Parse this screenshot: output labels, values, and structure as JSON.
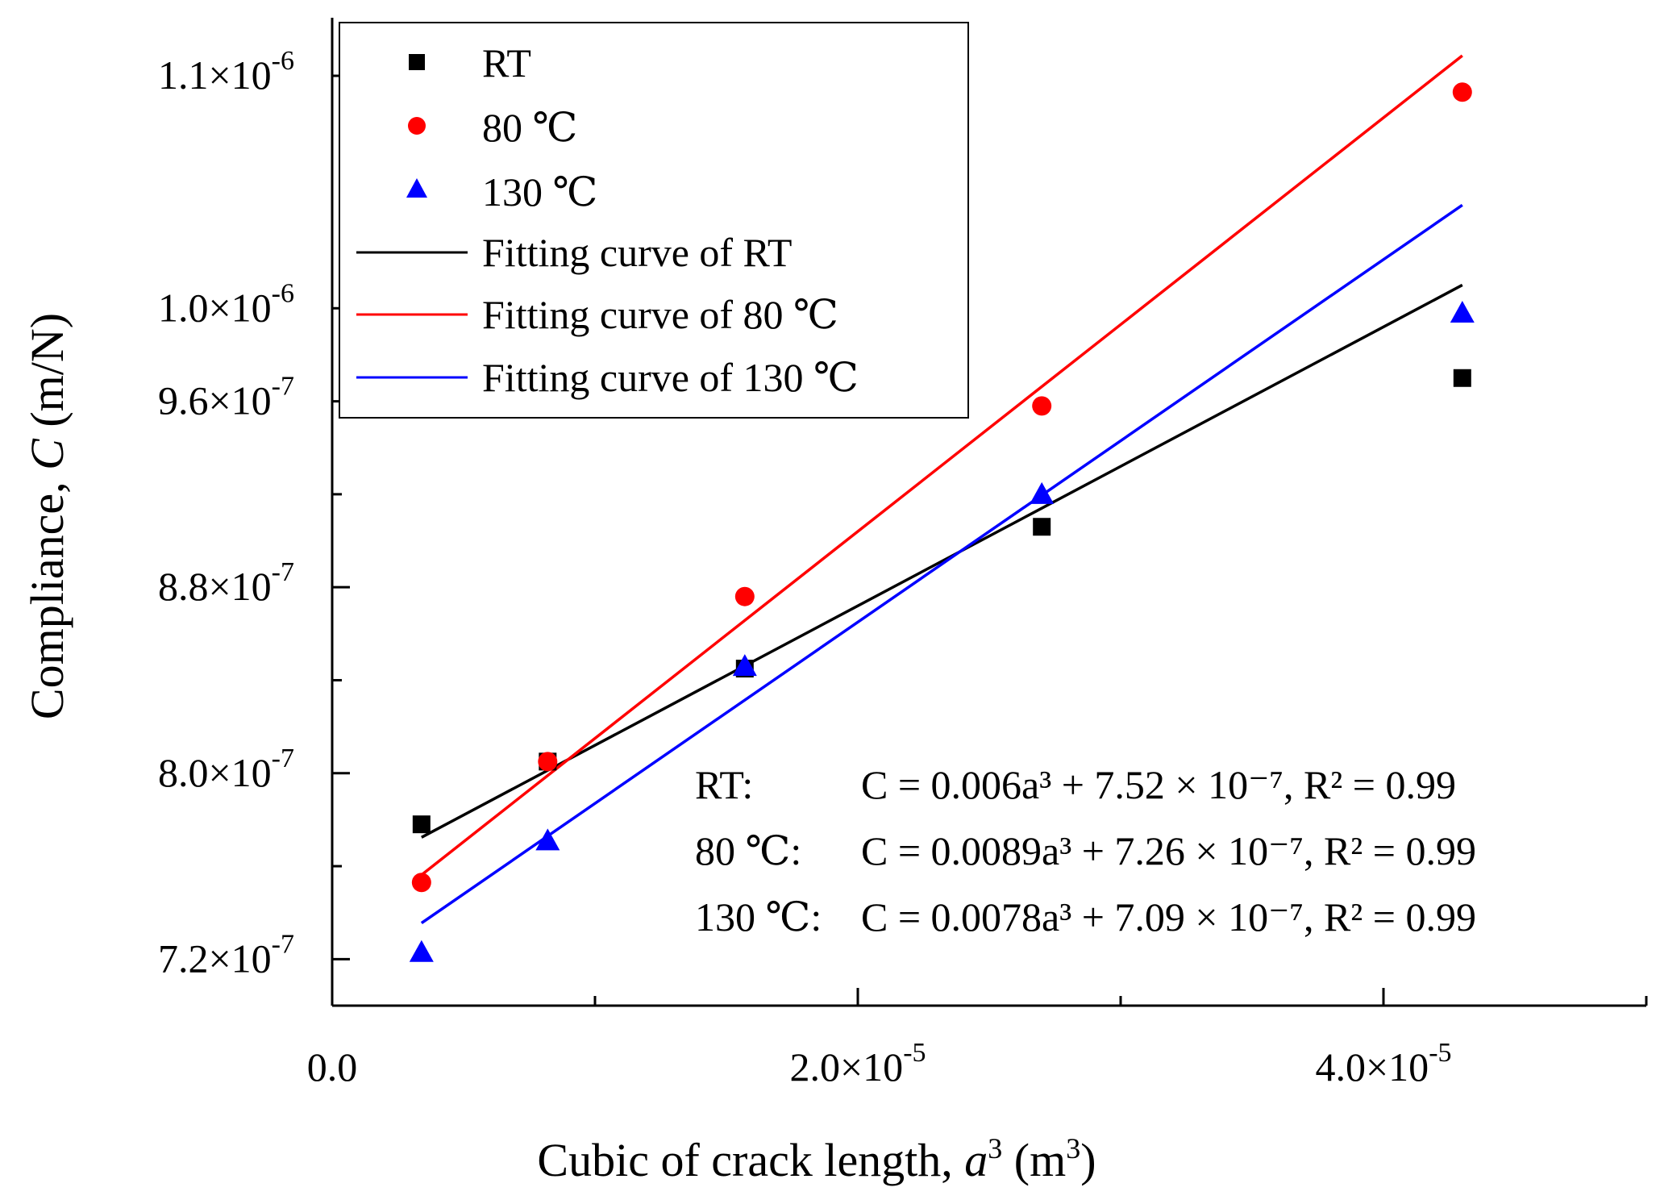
{
  "chart_data": {
    "type": "scatter",
    "title": "",
    "xlabel": {
      "prefix": "Cubic of crack length, ",
      "var": "a",
      "sup": "3",
      "unit_open": " (m",
      "unit_sup": "3",
      "unit_close": ")"
    },
    "ylabel": {
      "prefix": "Compliance, ",
      "var": "C",
      "unit": " (m/N)"
    },
    "xlim": [
      0,
      5e-05
    ],
    "ylim": [
      7e-07,
      1.125e-06
    ],
    "x_ticks": [
      {
        "value": 0,
        "mant": "0.0",
        "exp": ""
      },
      {
        "value": 2e-05,
        "mant": "2.0×10",
        "exp": "-5"
      },
      {
        "value": 4e-05,
        "mant": "4.0×10",
        "exp": "-5"
      }
    ],
    "x_minor_ticks": [
      1e-05,
      3e-05,
      5e-05
    ],
    "y_ticks": [
      {
        "value": 7.2e-07,
        "mant": "7.2×10",
        "exp": "-7"
      },
      {
        "value": 8e-07,
        "mant": "8.0×10",
        "exp": "-7"
      },
      {
        "value": 8.8e-07,
        "mant": "8.8×10",
        "exp": "-7"
      },
      {
        "value": 9.6e-07,
        "mant": "9.6×10",
        "exp": "-7"
      },
      {
        "value": 1e-06,
        "mant": "1.0×10",
        "exp": "-6"
      },
      {
        "value": 1.1e-06,
        "mant": "1.1×10",
        "exp": "-6"
      }
    ],
    "y_minor_ticks": [
      7.6e-07,
      8.4e-07,
      9.2e-07
    ],
    "series": [
      {
        "name": "RT",
        "marker": "square",
        "color": "#000000",
        "x": [
          3.4e-06,
          8.2e-06,
          1.57e-05,
          2.7e-05,
          4.3e-05
        ],
        "y": [
          7.78e-07,
          8.05e-07,
          8.45e-07,
          9.06e-07,
          9.7e-07
        ]
      },
      {
        "name": "80 ℃",
        "marker": "circle",
        "color": "#ff0000",
        "x": [
          3.4e-06,
          8.2e-06,
          1.57e-05,
          2.7e-05,
          4.3e-05
        ],
        "y": [
          7.53e-07,
          8.05e-07,
          8.76e-07,
          9.58e-07,
          1.093e-06
        ]
      },
      {
        "name": "130 ℃",
        "marker": "triangle",
        "color": "#0000ff",
        "x": [
          3.4e-06,
          8.2e-06,
          1.57e-05,
          2.7e-05,
          4.3e-05
        ],
        "y": [
          7.23e-07,
          7.71e-07,
          8.46e-07,
          9.2e-07,
          9.98e-07
        ]
      }
    ],
    "fits": [
      {
        "name": "Fitting curve of RT",
        "color": "#000000",
        "slope": 0.006,
        "intercept": 7.52e-07,
        "x_range": [
          3.4e-06,
          4.3e-05
        ]
      },
      {
        "name": "Fitting curve of 80 ℃",
        "color": "#ff0000",
        "slope": 0.0089,
        "intercept": 7.26e-07,
        "x_range": [
          3.4e-06,
          4.3e-05
        ]
      },
      {
        "name": "Fitting curve of 130 ℃",
        "color": "#0000ff",
        "slope": 0.0078,
        "intercept": 7.09e-07,
        "x_range": [
          3.4e-06,
          4.3e-05
        ]
      }
    ],
    "legend_position": "top-left",
    "equations": [
      {
        "label": "RT:",
        "expr": "C = 0.006a³ + 7.52 ×  10⁻⁷,   R² = 0.99"
      },
      {
        "label": "80 ℃:",
        "expr": "C = 0.0089a³ + 7.26 ×  10⁻⁷, R² = 0.99"
      },
      {
        "label": "130 ℃:",
        "expr": "C = 0.0078a³ + 7.09 ×  10⁻⁷, R² = 0.99"
      }
    ]
  }
}
